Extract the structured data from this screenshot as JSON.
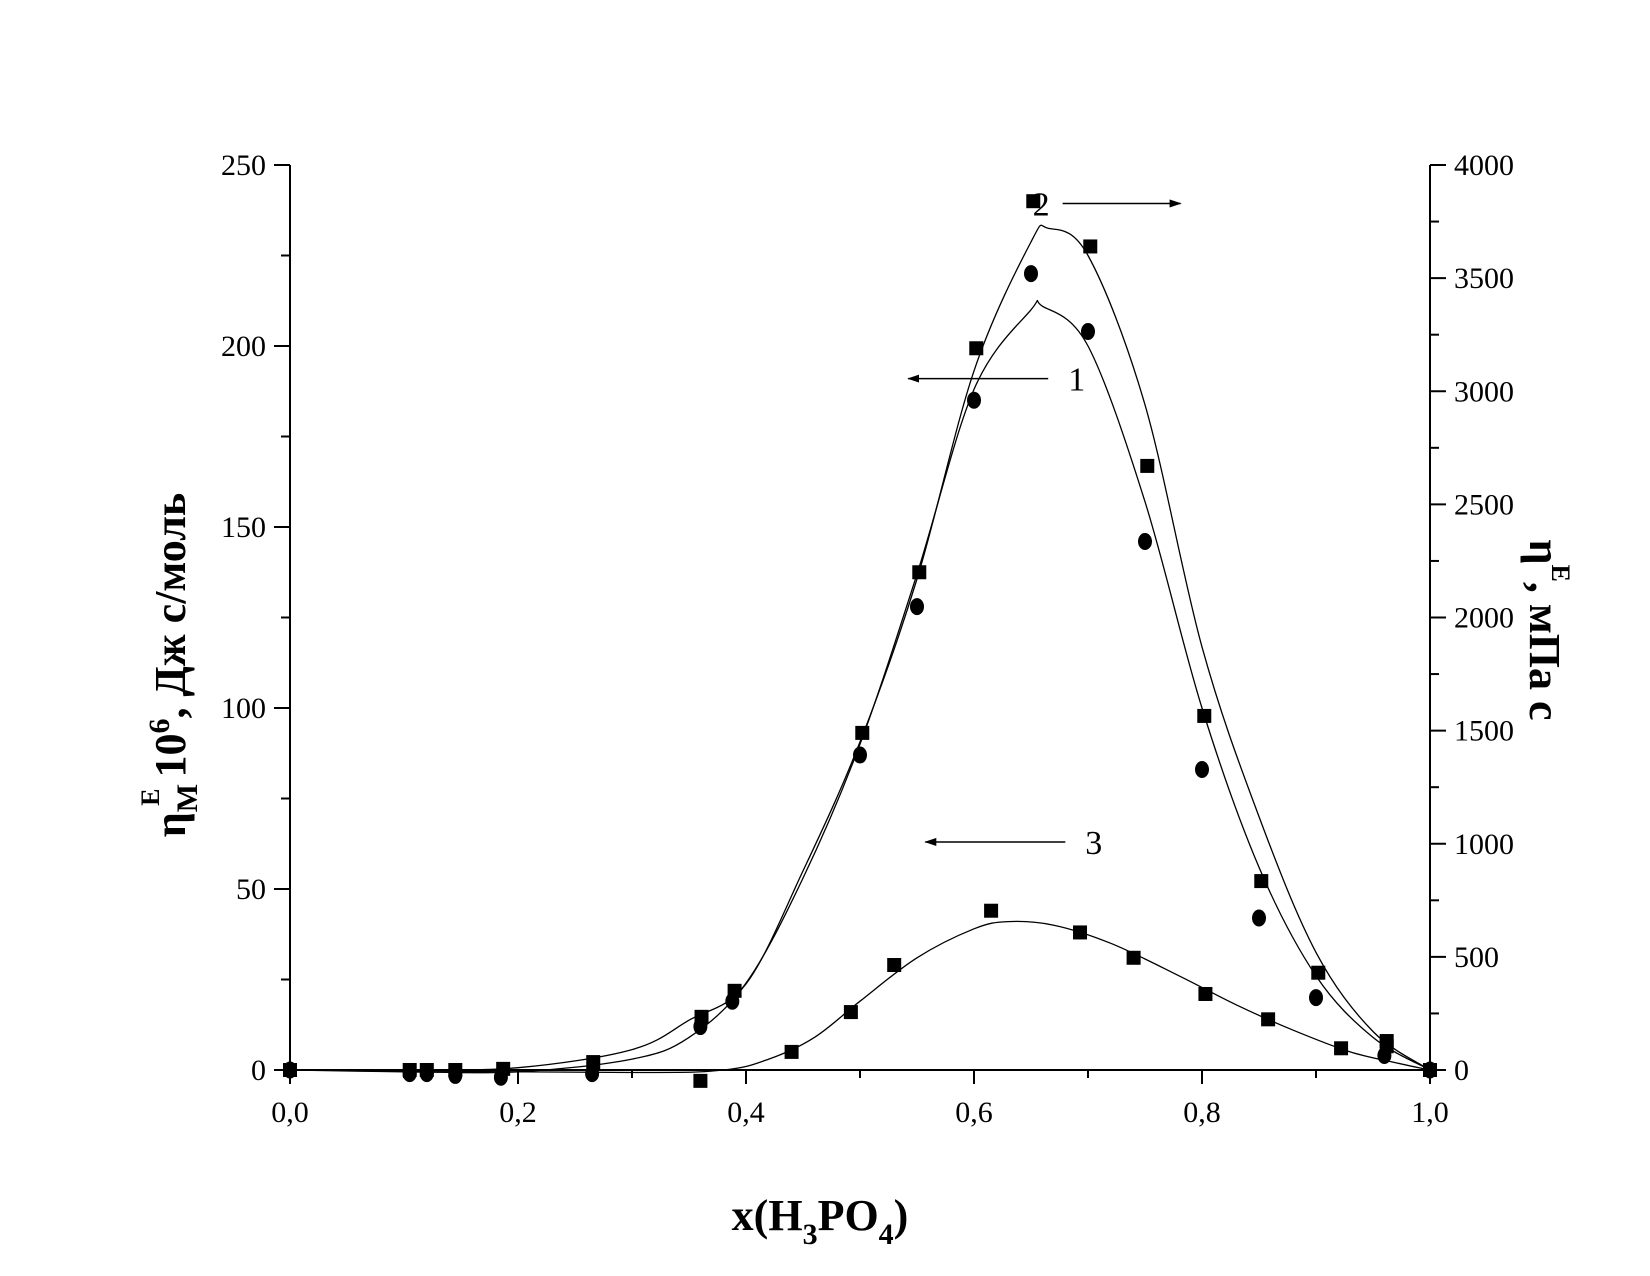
{
  "chart_data": {
    "type": "scatter",
    "x_axis": {
      "title": {
        "prefix": "x(H",
        "sub1": "3",
        "mid": "PO",
        "sub2": "4",
        "suffix": ")"
      },
      "range": [
        0,
        1
      ],
      "ticks": [
        0,
        0.2,
        0.4,
        0.6,
        0.8,
        1.0
      ],
      "tick_labels": [
        "0,0",
        "0,2",
        "0,4",
        "0,6",
        "0,8",
        "1,0"
      ]
    },
    "y_left": {
      "title": {
        "eta": "η",
        "sub": "M",
        "sup": "E",
        "rest": " 10",
        "sup2": "6",
        "tail": ", Дж с/моль"
      },
      "range": [
        0,
        250
      ],
      "ticks": [
        0,
        50,
        100,
        150,
        200,
        250
      ],
      "tick_labels": [
        "0",
        "50",
        "100",
        "150",
        "200",
        "250"
      ]
    },
    "y_right": {
      "title": {
        "eta": "η",
        "sup": "E",
        "tail": ", мПа с"
      },
      "range": [
        0,
        4000
      ],
      "ticks": [
        0,
        500,
        1000,
        1500,
        2000,
        2500,
        3000,
        3500,
        4000
      ],
      "tick_labels": [
        "0",
        "500",
        "1000",
        "1500",
        "2000",
        "2500",
        "3000",
        "3500",
        "4000"
      ]
    },
    "series": [
      {
        "id": "1",
        "axis": "left",
        "marker": "circle",
        "x": [
          0,
          0.105,
          0.12,
          0.145,
          0.185,
          0.265,
          0.36,
          0.388,
          0.5,
          0.55,
          0.6,
          0.65,
          0.7,
          0.75,
          0.8,
          0.85,
          0.9,
          0.96,
          1.0
        ],
        "y": [
          0,
          -1,
          -1,
          -1.5,
          -2,
          -1,
          12,
          19,
          87,
          128,
          185,
          220,
          204,
          146,
          83,
          42,
          20,
          4,
          0
        ]
      },
      {
        "id": "2",
        "axis": "right",
        "marker": "square",
        "x": [
          0,
          0.105,
          0.12,
          0.145,
          0.187,
          0.266,
          0.361,
          0.39,
          0.502,
          0.552,
          0.602,
          0.652,
          0.702,
          0.752,
          0.802,
          0.852,
          0.902,
          0.962,
          1.0
        ],
        "y": [
          0,
          0,
          0,
          0,
          5,
          35,
          235,
          350,
          1490,
          2200,
          3190,
          3840,
          3640,
          2670,
          1565,
          835,
          430,
          105,
          0
        ]
      },
      {
        "id": "3",
        "axis": "left",
        "marker": "square",
        "x": [
          0,
          0.36,
          0.44,
          0.492,
          0.53,
          0.615,
          0.693,
          0.74,
          0.803,
          0.858,
          0.922,
          0.962,
          1.0
        ],
        "y": [
          0,
          -3,
          5,
          16,
          29,
          44,
          38,
          31,
          21,
          14,
          6,
          8,
          0
        ]
      }
    ],
    "fit_curves": [
      {
        "series": "1",
        "axis": "left",
        "x": [
          0,
          0.1,
          0.2,
          0.3,
          0.35,
          0.4,
          0.45,
          0.5,
          0.55,
          0.6,
          0.65,
          0.66,
          0.7,
          0.75,
          0.8,
          0.85,
          0.9,
          0.95,
          1.0
        ],
        "y": [
          0,
          -0.5,
          -0.5,
          3,
          9,
          24,
          53,
          90,
          137,
          188,
          210,
          211,
          200,
          157,
          100,
          56,
          26,
          9,
          0
        ]
      },
      {
        "series": "2",
        "axis": "right",
        "x": [
          0,
          0.1,
          0.2,
          0.3,
          0.35,
          0.4,
          0.45,
          0.5,
          0.55,
          0.6,
          0.65,
          0.665,
          0.7,
          0.75,
          0.8,
          0.85,
          0.9,
          0.95,
          1.0
        ],
        "y": [
          0,
          0,
          10,
          90,
          220,
          380,
          880,
          1450,
          2170,
          3090,
          3660,
          3720,
          3600,
          2940,
          1870,
          1120,
          520,
          170,
          0
        ]
      },
      {
        "series": "3",
        "axis": "left",
        "x": [
          0,
          0.3,
          0.38,
          0.42,
          0.46,
          0.5,
          0.55,
          0.6,
          0.63,
          0.67,
          0.72,
          0.78,
          0.83,
          0.88,
          0.93,
          0.97,
          1.0
        ],
        "y": [
          0,
          -0.7,
          0,
          3,
          9,
          19,
          31,
          39,
          41,
          40,
          35,
          26,
          18,
          11,
          5,
          2,
          0
        ]
      }
    ],
    "annotations": [
      {
        "label": "1",
        "arrow": "left",
        "axis": "left",
        "x": 0.63,
        "y": 191
      },
      {
        "label": "2",
        "arrow": "right",
        "axis": "right",
        "x": 0.69,
        "y": 3830
      },
      {
        "label": "3",
        "arrow": "left",
        "axis": "left",
        "x": 0.645,
        "y": 63
      }
    ],
    "grid": false,
    "legend": "none"
  }
}
